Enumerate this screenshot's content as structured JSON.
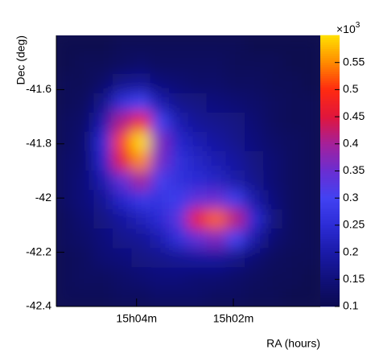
{
  "chart_data": {
    "type": "heatmap",
    "x_label": "RA (hours)",
    "y_label": "Dec (deg)",
    "xlim": [
      15.0944,
      15.0033
    ],
    "ylim": [
      -42.4,
      -41.4
    ],
    "xticks": [
      {
        "value": 15.0667,
        "label": "15h04m"
      },
      {
        "value": 15.0333,
        "label": "15h02m"
      }
    ],
    "yticks": [
      -41.6,
      -41.8,
      -42,
      -42.2,
      -42.4
    ],
    "zlim": [
      0.1,
      0.6
    ],
    "zticks": [
      0.1,
      0.15,
      0.2,
      0.25,
      0.3,
      0.35,
      0.4,
      0.45,
      0.5,
      0.55
    ],
    "colorbar_exponent": {
      "base": "×10",
      "power": "3"
    },
    "colorscale": [
      "#0b0a50",
      "#10107a",
      "#1a1aa8",
      "#2c2cd6",
      "#4242f2",
      "#6a2ed2",
      "#a4209a",
      "#e0163c",
      "#ff2a10",
      "#ff8a00",
      "#ffe000"
    ],
    "x": [
      15.0911,
      15.0846,
      15.0781,
      15.0716,
      15.0651,
      15.0586,
      15.0521,
      15.0456,
      15.0391,
      15.0325,
      15.026,
      15.0195,
      15.013,
      15.0065
    ],
    "y": [
      -41.4357,
      -41.5071,
      -41.5786,
      -41.65,
      -41.7214,
      -41.7929,
      -41.8643,
      -41.9357,
      -42.0071,
      -42.0786,
      -42.15,
      -42.2214,
      -42.2929,
      -42.3643
    ],
    "z": [
      [
        0.1,
        0.1,
        0.1,
        0.11,
        0.11,
        0.11,
        0.11,
        0.11,
        0.11,
        0.11,
        0.1,
        0.1,
        0.1,
        0.1
      ],
      [
        0.1,
        0.11,
        0.11,
        0.12,
        0.13,
        0.12,
        0.12,
        0.12,
        0.12,
        0.11,
        0.11,
        0.11,
        0.1,
        0.1
      ],
      [
        0.11,
        0.11,
        0.13,
        0.17,
        0.18,
        0.15,
        0.14,
        0.13,
        0.13,
        0.12,
        0.12,
        0.11,
        0.11,
        0.1
      ],
      [
        0.11,
        0.12,
        0.17,
        0.26,
        0.3,
        0.21,
        0.17,
        0.16,
        0.15,
        0.14,
        0.13,
        0.12,
        0.11,
        0.11
      ],
      [
        0.12,
        0.13,
        0.21,
        0.41,
        0.48,
        0.3,
        0.21,
        0.18,
        0.17,
        0.16,
        0.14,
        0.12,
        0.11,
        0.11
      ],
      [
        0.12,
        0.14,
        0.25,
        0.51,
        0.6,
        0.37,
        0.24,
        0.21,
        0.19,
        0.17,
        0.15,
        0.13,
        0.12,
        0.11
      ],
      [
        0.13,
        0.14,
        0.24,
        0.46,
        0.55,
        0.36,
        0.26,
        0.23,
        0.21,
        0.19,
        0.16,
        0.14,
        0.12,
        0.11
      ],
      [
        0.13,
        0.15,
        0.21,
        0.34,
        0.4,
        0.31,
        0.26,
        0.25,
        0.23,
        0.2,
        0.17,
        0.14,
        0.12,
        0.11
      ],
      [
        0.13,
        0.15,
        0.18,
        0.24,
        0.28,
        0.27,
        0.29,
        0.34,
        0.35,
        0.29,
        0.2,
        0.15,
        0.12,
        0.11
      ],
      [
        0.12,
        0.14,
        0.16,
        0.19,
        0.22,
        0.25,
        0.33,
        0.47,
        0.53,
        0.42,
        0.25,
        0.16,
        0.12,
        0.11
      ],
      [
        0.12,
        0.13,
        0.15,
        0.17,
        0.18,
        0.21,
        0.26,
        0.34,
        0.37,
        0.3,
        0.2,
        0.14,
        0.12,
        0.11
      ],
      [
        0.11,
        0.12,
        0.14,
        0.15,
        0.16,
        0.17,
        0.18,
        0.19,
        0.19,
        0.17,
        0.14,
        0.12,
        0.11,
        0.11
      ],
      [
        0.11,
        0.12,
        0.12,
        0.13,
        0.14,
        0.15,
        0.15,
        0.14,
        0.14,
        0.13,
        0.12,
        0.11,
        0.11,
        0.1
      ],
      [
        0.11,
        0.11,
        0.11,
        0.12,
        0.12,
        0.13,
        0.13,
        0.13,
        0.12,
        0.12,
        0.11,
        0.11,
        0.1,
        0.1
      ]
    ]
  }
}
